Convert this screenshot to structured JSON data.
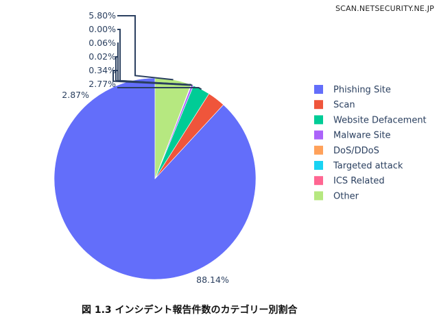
{
  "watermark": "SCAN.NETSECURITY.NE.JP",
  "caption": "図 1.3 インシデント報告件数のカテゴリー別割合",
  "chart_data": {
    "type": "pie",
    "categories": [
      "Phishing Site",
      "Scan",
      "Website Defacement",
      "Malware Site",
      "DoS/DDoS",
      "Targeted attack",
      "ICS Related",
      "Other"
    ],
    "values": [
      88.14,
      2.87,
      2.77,
      0.34,
      0.02,
      0.06,
      0.0,
      5.8
    ],
    "labels": [
      "88.14%",
      "2.87%",
      "2.77%",
      "0.34%",
      "0.02%",
      "0.06%",
      "0.00%",
      "5.80%"
    ],
    "colors": [
      "#636efa",
      "#ef553b",
      "#00cc96",
      "#ab63fa",
      "#ffa15a",
      "#19d3f3",
      "#ff6692",
      "#b6e880"
    ],
    "legend_position": "right",
    "direction": "counterclockwise",
    "start": "top"
  }
}
